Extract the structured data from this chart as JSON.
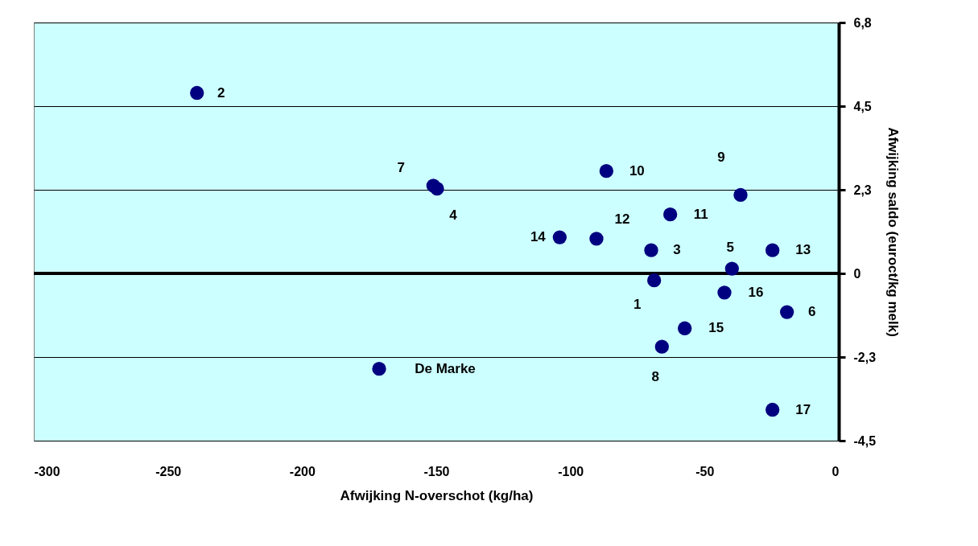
{
  "chart_data": {
    "type": "scatter",
    "xlabel": "Afwijking N-overschot (kg/ha)",
    "ylabel": "Afwijking saldo (euroct/kg melk)",
    "x": [
      -239.2,
      -151.1,
      -149.7,
      -86.6,
      -36.6,
      -62.8,
      -90.3,
      -104.0,
      -69.9,
      -39.8,
      -24.7,
      -68.8,
      -42.6,
      -19.3,
      -57.4,
      -65.9,
      -171.3,
      -24.7
    ],
    "series": [
      {
        "color": "#000080",
        "values": [
          4.9,
          2.38,
          2.3,
          2.78,
          2.13,
          1.6,
          0.94,
          0.98,
          0.63,
          0.13,
          0.63,
          -0.19,
          -0.52,
          -1.05,
          -1.49,
          -1.99,
          -2.59,
          -3.7
        ]
      }
    ],
    "xlim": [
      -300,
      0
    ],
    "xticks": [
      -300,
      -250,
      -200,
      -150,
      -100,
      -50,
      0
    ],
    "ylim": [
      -4.54,
      6.81
    ],
    "yticks": [
      {
        "value": -4.54,
        "label": "-4,5"
      },
      {
        "value": -2.27,
        "label": "-2,3"
      },
      {
        "value": 0,
        "label": "0"
      },
      {
        "value": 2.27,
        "label": "2,3"
      },
      {
        "value": 4.54,
        "label": "4,5"
      },
      {
        "value": 6.81,
        "label": "6,8"
      }
    ],
    "grid": "y",
    "marker": "circle",
    "ref_lines": [
      {
        "axis": "y",
        "value": 0,
        "color": "#000000"
      }
    ],
    "annotations": [
      {
        "text": "2",
        "x": -239.2,
        "y": 4.9
      },
      {
        "text": "7",
        "x": -151.1,
        "y": 2.38
      },
      {
        "text": "4",
        "x": -149.7,
        "y": 2.3
      },
      {
        "text": "10",
        "x": -86.6,
        "y": 2.78
      },
      {
        "text": "9",
        "x": -36.6,
        "y": 2.13
      },
      {
        "text": "11",
        "x": -62.8,
        "y": 1.6
      },
      {
        "text": "12",
        "x": -90.3,
        "y": 0.94
      },
      {
        "text": "14",
        "x": -104.0,
        "y": 0.98
      },
      {
        "text": "3",
        "x": -69.9,
        "y": 0.63
      },
      {
        "text": "5",
        "x": -39.8,
        "y": 0.13
      },
      {
        "text": "13",
        "x": -24.7,
        "y": 0.63
      },
      {
        "text": "1",
        "x": -68.8,
        "y": -0.19
      },
      {
        "text": "16",
        "x": -42.6,
        "y": -0.52
      },
      {
        "text": "6",
        "x": -19.3,
        "y": -1.05
      },
      {
        "text": "15",
        "x": -57.4,
        "y": -1.49
      },
      {
        "text": "8",
        "x": -65.9,
        "y": -1.99
      },
      {
        "text": "De Marke",
        "x": -171.3,
        "y": -2.59
      },
      {
        "text": "17",
        "x": -24.7,
        "y": -3.7
      }
    ]
  }
}
